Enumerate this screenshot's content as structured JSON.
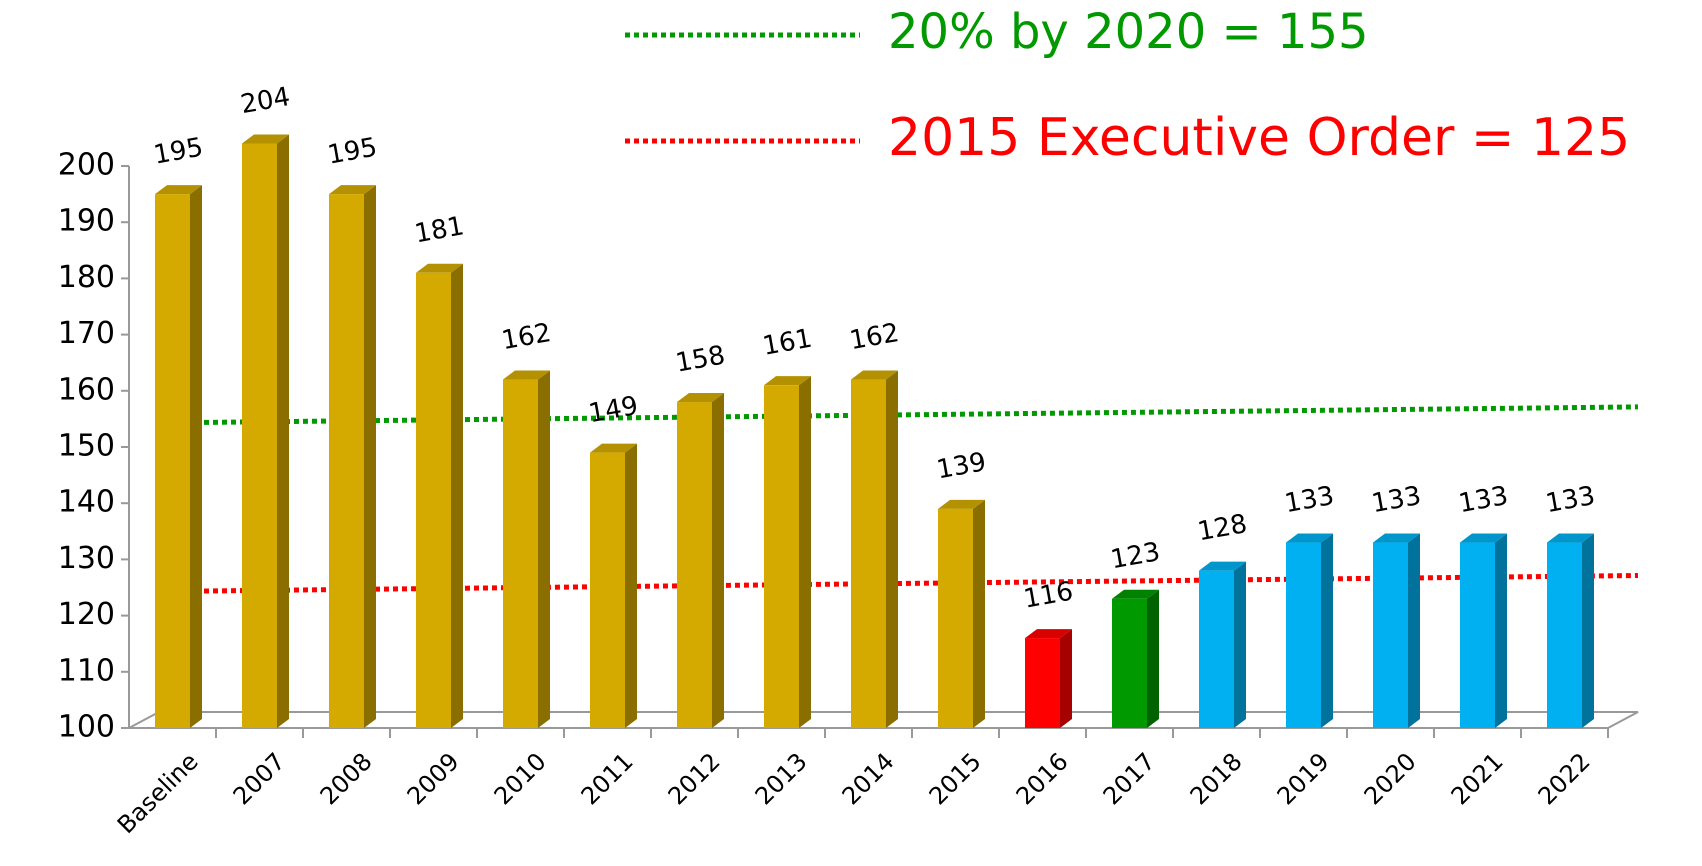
{
  "chart_data": {
    "type": "bar",
    "categories": [
      "Baseline",
      "2007",
      "2008",
      "2009",
      "2010",
      "2011",
      "2012",
      "2013",
      "2014",
      "2015",
      "2016",
      "2017",
      "2018",
      "2019",
      "2020",
      "2021",
      "2022"
    ],
    "values": [
      195,
      204,
      195,
      181,
      162,
      149,
      158,
      161,
      162,
      139,
      116,
      123,
      128,
      133,
      133,
      133,
      133
    ],
    "colors": [
      "#d4aa00",
      "#d4aa00",
      "#d4aa00",
      "#d4aa00",
      "#d4aa00",
      "#d4aa00",
      "#d4aa00",
      "#d4aa00",
      "#d4aa00",
      "#d4aa00",
      "#ff0000",
      "#009900",
      "#00b0f0",
      "#00b0f0",
      "#00b0f0",
      "#00b0f0",
      "#00b0f0"
    ],
    "ylim": [
      100,
      200
    ],
    "yticks": [
      100,
      110,
      120,
      130,
      140,
      150,
      160,
      170,
      180,
      190,
      200
    ],
    "grid": false,
    "reference_lines": [
      {
        "label": "20% by 2020 = 155",
        "value": 155,
        "color": "#009900"
      },
      {
        "label": "2015 Executive Order = 125",
        "value": 125,
        "color": "#ff0000"
      }
    ]
  }
}
